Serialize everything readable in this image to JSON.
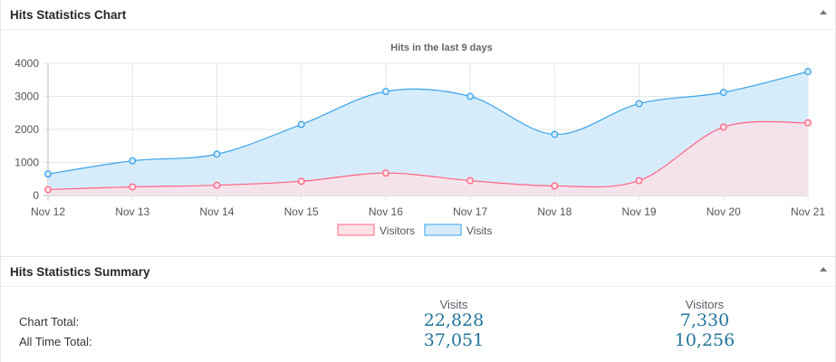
{
  "chart_panel": {
    "title": "Hits Statistics Chart"
  },
  "summary_panel": {
    "title": "Hits Statistics Summary"
  },
  "chart_data": {
    "type": "area",
    "title": "Hits in the last 9 days",
    "categories": [
      "Nov 12",
      "Nov 13",
      "Nov 14",
      "Nov 15",
      "Nov 16",
      "Nov 17",
      "Nov 18",
      "Nov 19",
      "Nov 20",
      "Nov 21"
    ],
    "ylim": [
      0,
      4000
    ],
    "yticks": [
      0,
      1000,
      2000,
      3000,
      4000
    ],
    "grid": true,
    "legend": "bottom-center",
    "series": [
      {
        "name": "Visitors",
        "values": [
          180,
          260,
          310,
          430,
          680,
          450,
          290,
          450,
          2070,
          2200
        ],
        "color": "#ff6384",
        "fill": "#ffe0e6"
      },
      {
        "name": "Visits",
        "values": [
          650,
          1050,
          1250,
          2150,
          3150,
          3000,
          1850,
          2780,
          3120,
          3750
        ],
        "color": "#36a2eb",
        "fill": "#d7ecfb"
      }
    ]
  },
  "summary": {
    "col_visits": "Visits",
    "col_visitors": "Visitors",
    "chart_total_label": "Chart Total:",
    "all_time_label": "All Time Total:",
    "chart_total_visits": "22,828",
    "chart_total_visitors": "7,330",
    "all_time_visits": "37,051",
    "all_time_visitors": "10,256"
  }
}
